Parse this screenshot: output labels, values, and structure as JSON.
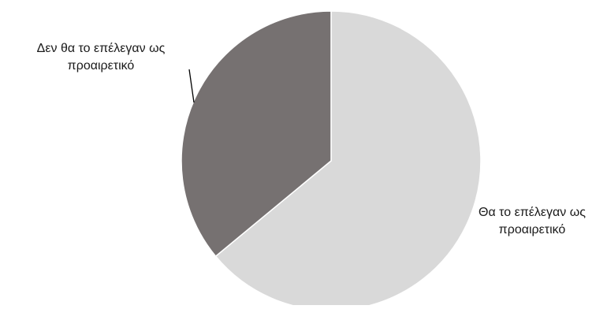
{
  "chart_data": {
    "type": "pie",
    "slices": [
      {
        "label_lines": [
          "Θα το επέλεγαν ως",
          "προαιρετικό"
        ],
        "value": 64,
        "color": "#d9d9d9"
      },
      {
        "label_lines": [
          "Δεν θα το επέλεγαν ως",
          "προαιρετικό"
        ],
        "value": 36,
        "color": "#767171"
      }
    ],
    "legend": "none"
  }
}
